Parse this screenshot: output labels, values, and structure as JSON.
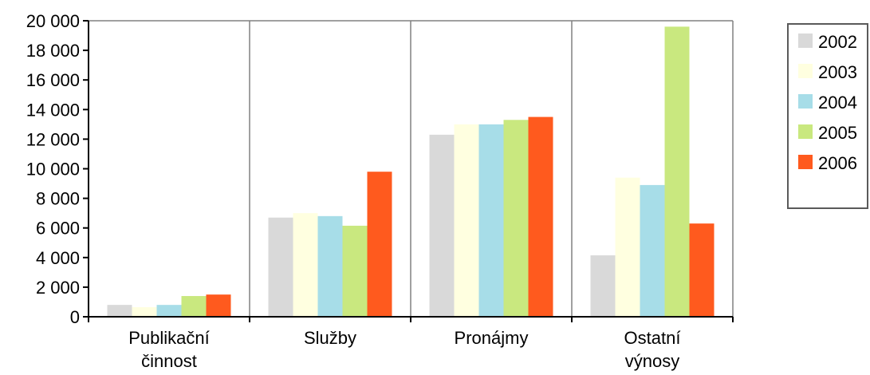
{
  "chart_data": {
    "type": "bar",
    "categories": [
      [
        "Publikační",
        "činnost"
      ],
      [
        "Služby"
      ],
      [
        "Pronájmy"
      ],
      [
        "Ostatní",
        "výnosy"
      ]
    ],
    "series": [
      {
        "name": "2002",
        "color": "#d9d9d9",
        "values": [
          800,
          6700,
          12300,
          4150
        ]
      },
      {
        "name": "2003",
        "color": "#ffffe0",
        "values": [
          650,
          7000,
          13000,
          9400
        ]
      },
      {
        "name": "2004",
        "color": "#a7dde8",
        "values": [
          800,
          6800,
          13000,
          8900
        ]
      },
      {
        "name": "2005",
        "color": "#c9e87f",
        "values": [
          1400,
          6150,
          13300,
          19600
        ]
      },
      {
        "name": "2006",
        "color": "#ff5a1e",
        "values": [
          1500,
          9800,
          13500,
          6300
        ]
      }
    ],
    "y_ticks": [
      "0",
      "2 000",
      "4 000",
      "6 000",
      "8 000",
      "10 000",
      "12 000",
      "14 000",
      "16 000",
      "18 000",
      "20 000"
    ],
    "ylim": [
      0,
      20000
    ],
    "grid": "vertical category separators",
    "legend": "right"
  }
}
